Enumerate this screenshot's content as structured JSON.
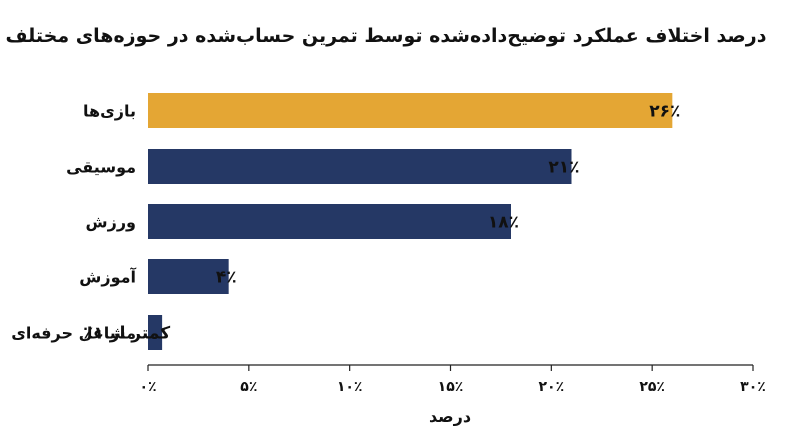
{
  "chart_data": {
    "type": "bar",
    "orientation": "horizontal",
    "title": "درصد اختلاف عملکرد توضیح‌داده‌شده توسط تمرین حساب‌شده در حوزه‌های مختلف",
    "xlabel": "درصد",
    "ylabel": "",
    "categories": [
      "بازی‌ها",
      "موسیقی",
      "ورزش",
      "آموزش",
      "مشاغل حرفه‌ای"
    ],
    "values": [
      26,
      21,
      18,
      4,
      0.7
    ],
    "value_labels": [
      "۲۶٪",
      "۲۱٪",
      "۱۸٪",
      "۴٪",
      "کمتر از ۱٪"
    ],
    "bar_colors": [
      "#E4A634",
      "#253865",
      "#253865",
      "#253865",
      "#253865"
    ],
    "xlim": [
      0,
      30
    ],
    "xticks": [
      0,
      5,
      10,
      15,
      20,
      25,
      30
    ],
    "xtick_labels": [
      "۰٪",
      "۵٪",
      "۱۰٪",
      "۱۵٪",
      "۲۰٪",
      "۲۵٪",
      "۳۰٪"
    ],
    "grid": false,
    "legend": "none"
  }
}
